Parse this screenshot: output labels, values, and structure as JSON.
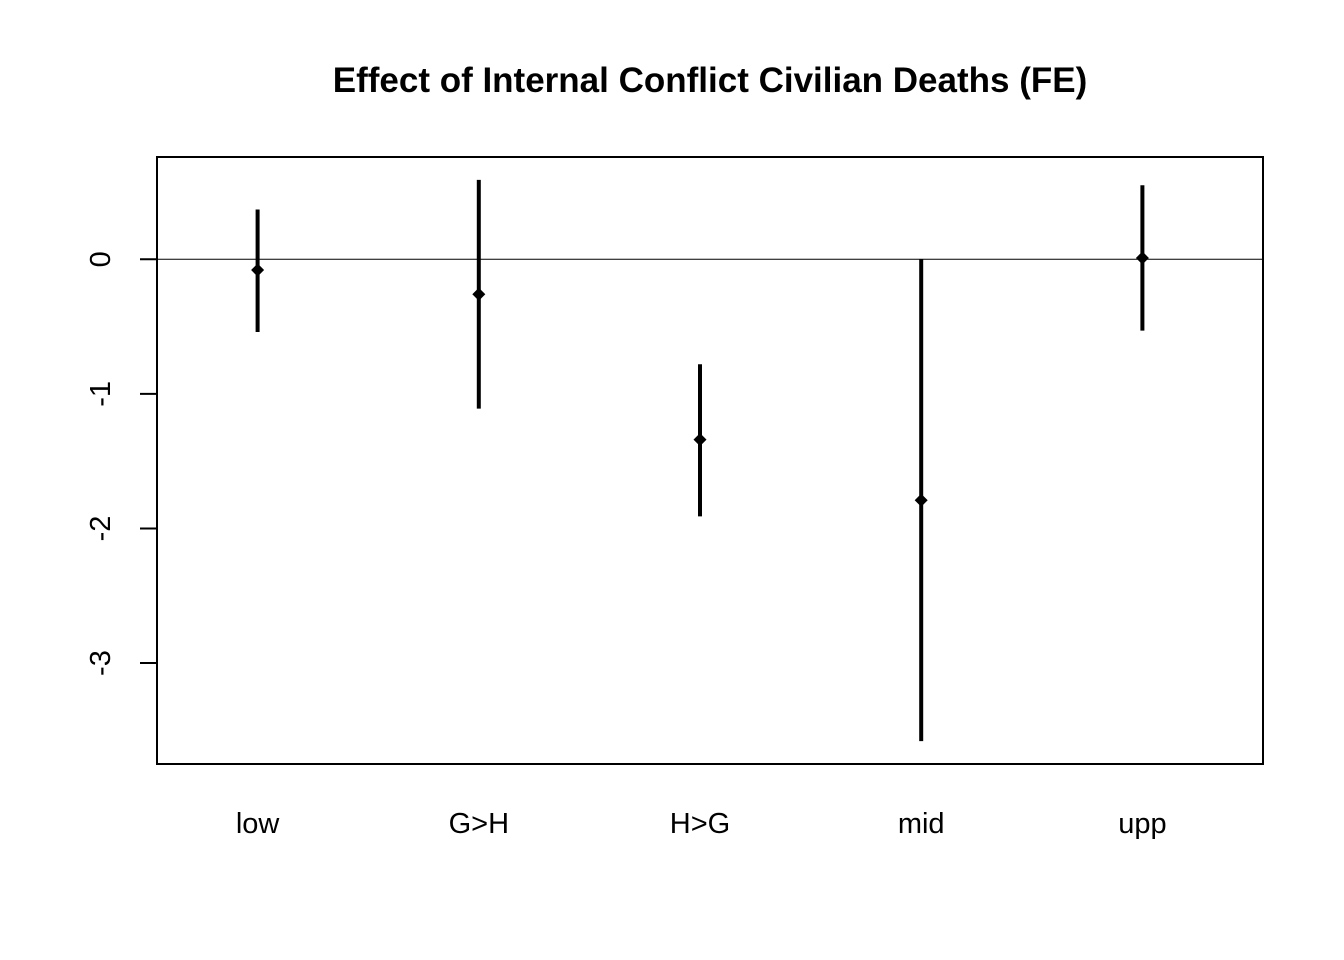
{
  "chart_data": {
    "type": "scatter",
    "title": "Effect of Internal Conflict Civilian Deaths (FE)",
    "xlabel": "",
    "ylabel": "",
    "categories": [
      "low",
      "G>H",
      "H>G",
      "mid",
      "upp"
    ],
    "series": [
      {
        "estimates": [
          -0.08,
          -0.26,
          -1.34,
          -1.79,
          0.01
        ],
        "lower": [
          -0.54,
          -1.11,
          -1.91,
          -3.58,
          -0.53
        ],
        "upper": [
          0.37,
          0.59,
          -0.78,
          0.0,
          0.55
        ]
      }
    ],
    "yticks": [
      0,
      -1,
      -2,
      -3
    ],
    "ytick_labels": [
      "0",
      "-1",
      "-2",
      "-3"
    ],
    "ylim": [
      -3.75,
      0.76
    ],
    "reference_line": 0,
    "grid": false,
    "legend": "none",
    "colors": {
      "marks": "#000000",
      "background": "#ffffff"
    }
  }
}
